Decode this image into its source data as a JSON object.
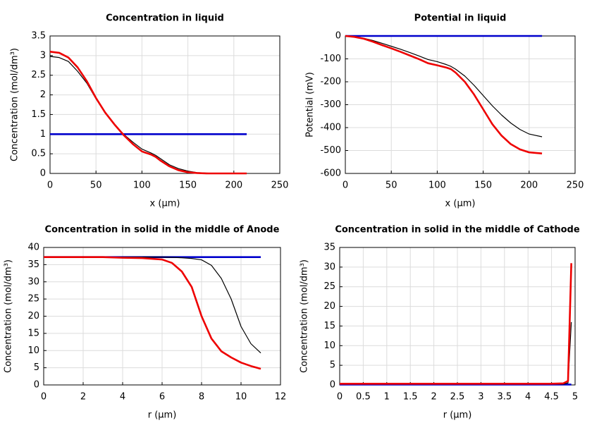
{
  "chart_data": [
    {
      "type": "line",
      "title": "Concentration in liquid",
      "xlabel": "x (µm)",
      "ylabel": "Concentration (mol/dm³)",
      "xlim": [
        0,
        250
      ],
      "xticks": [
        0,
        50,
        100,
        150,
        200,
        250
      ],
      "ylim": [
        0,
        3.5
      ],
      "yticks": [
        0,
        0.5,
        1,
        1.5,
        2,
        2.5,
        3,
        3.5
      ],
      "grid": true,
      "x": [
        0,
        10,
        20,
        30,
        40,
        50,
        60,
        70,
        80,
        90,
        100,
        110,
        115,
        120,
        130,
        140,
        150,
        160,
        170,
        180,
        190,
        200,
        214
      ],
      "series": [
        {
          "color": "#0000cc",
          "values": [
            1,
            1,
            1,
            1,
            1,
            1,
            1,
            1,
            1,
            1,
            1,
            1,
            1,
            1,
            1,
            1,
            1,
            1,
            1,
            1,
            1,
            1,
            1
          ]
        },
        {
          "color": "#000000",
          "values": [
            2.98,
            2.95,
            2.85,
            2.6,
            2.3,
            1.9,
            1.55,
            1.25,
            1.0,
            0.8,
            0.62,
            0.52,
            0.46,
            0.38,
            0.22,
            0.12,
            0.06,
            0.02,
            0.01,
            0,
            0,
            0,
            0
          ]
        },
        {
          "color": "#ee0000",
          "values": [
            3.1,
            3.07,
            2.95,
            2.7,
            2.35,
            1.92,
            1.55,
            1.25,
            0.98,
            0.75,
            0.56,
            0.48,
            0.42,
            0.33,
            0.18,
            0.08,
            0.03,
            0.01,
            0,
            0,
            0,
            0,
            0
          ]
        }
      ]
    },
    {
      "type": "line",
      "title": "Potential in liquid",
      "xlabel": "x (µm)",
      "ylabel": "Potential (mV)",
      "xlim": [
        0,
        250
      ],
      "xticks": [
        0,
        50,
        100,
        150,
        200,
        250
      ],
      "ylim": [
        -600,
        0
      ],
      "yticks": [
        -600,
        -500,
        -400,
        -300,
        -200,
        -100,
        0
      ],
      "grid": true,
      "x": [
        0,
        10,
        20,
        30,
        40,
        50,
        60,
        70,
        80,
        90,
        100,
        110,
        115,
        120,
        130,
        140,
        150,
        160,
        170,
        180,
        190,
        200,
        214
      ],
      "series": [
        {
          "color": "#0000cc",
          "values": [
            0,
            0,
            0,
            0,
            0,
            0,
            0,
            0,
            0,
            0,
            0,
            0,
            0,
            0,
            0,
            0,
            0,
            0,
            0,
            0,
            0,
            0,
            0
          ]
        },
        {
          "color": "#000000",
          "values": [
            0,
            -3,
            -10,
            -20,
            -32,
            -45,
            -58,
            -72,
            -87,
            -103,
            -112,
            -125,
            -133,
            -145,
            -175,
            -215,
            -260,
            -305,
            -345,
            -380,
            -408,
            -428,
            -440
          ]
        },
        {
          "color": "#ee0000",
          "values": [
            0,
            -4,
            -12,
            -25,
            -40,
            -54,
            -69,
            -85,
            -101,
            -119,
            -128,
            -138,
            -145,
            -160,
            -200,
            -255,
            -320,
            -385,
            -435,
            -472,
            -495,
            -508,
            -513
          ]
        }
      ]
    },
    {
      "type": "line",
      "title": "Concentration in solid in the middle of Anode",
      "xlabel": "r (µm)",
      "ylabel": "Concentration (mol/dm³)",
      "xlim": [
        0,
        12
      ],
      "xticks": [
        0,
        2,
        4,
        6,
        8,
        10,
        12
      ],
      "ylim": [
        0,
        40
      ],
      "yticks": [
        0,
        5,
        10,
        15,
        20,
        25,
        30,
        35,
        40
      ],
      "grid": true,
      "x": [
        0,
        1,
        2,
        3,
        4,
        5,
        6,
        6.5,
        7,
        7.5,
        8,
        8.5,
        9,
        9.5,
        10,
        10.5,
        11
      ],
      "series": [
        {
          "color": "#0000cc",
          "values": [
            37.2,
            37.2,
            37.2,
            37.2,
            37.2,
            37.2,
            37.2,
            37.2,
            37.2,
            37.2,
            37.2,
            37.2,
            37.2,
            37.2,
            37.2,
            37.2,
            37.2
          ]
        },
        {
          "color": "#000000",
          "values": [
            37.2,
            37.2,
            37.2,
            37.2,
            37.2,
            37.2,
            37.2,
            37.1,
            37.0,
            36.8,
            36.4,
            34.8,
            31,
            25,
            17,
            12,
            9.3
          ]
        },
        {
          "color": "#ee0000",
          "values": [
            37.2,
            37.2,
            37.2,
            37.2,
            37,
            36.9,
            36.5,
            35.5,
            33,
            28.5,
            20,
            13.5,
            9.8,
            8,
            6.5,
            5.5,
            4.7
          ]
        }
      ]
    },
    {
      "type": "line",
      "title": "Concentration in solid in the middle of Cathode",
      "xlabel": "r (µm)",
      "ylabel": "Concentration (mol/dm³)",
      "xlim": [
        0,
        5
      ],
      "xticks": [
        0,
        0.5,
        1,
        1.5,
        2,
        2.5,
        3,
        3.5,
        4,
        4.5,
        5
      ],
      "ylim": [
        0,
        35
      ],
      "yticks": [
        0,
        5,
        10,
        15,
        20,
        25,
        30,
        35
      ],
      "grid": true,
      "x": [
        0,
        0.5,
        1,
        1.5,
        2,
        2.5,
        3,
        3.5,
        4,
        4.5,
        4.75,
        4.85,
        4.92
      ],
      "series": [
        {
          "color": "#0000cc",
          "values": [
            0.1,
            0.1,
            0.1,
            0.1,
            0.1,
            0.1,
            0.1,
            0.1,
            0.1,
            0.1,
            0.1,
            0.1,
            0.1
          ]
        },
        {
          "color": "#000000",
          "values": [
            0.2,
            0.2,
            0.2,
            0.2,
            0.2,
            0.2,
            0.2,
            0.2,
            0.2,
            0.2,
            0.2,
            0.5,
            16
          ]
        },
        {
          "color": "#ee0000",
          "values": [
            0.3,
            0.3,
            0.3,
            0.3,
            0.3,
            0.3,
            0.3,
            0.3,
            0.3,
            0.3,
            0.4,
            1,
            31
          ]
        }
      ]
    }
  ]
}
